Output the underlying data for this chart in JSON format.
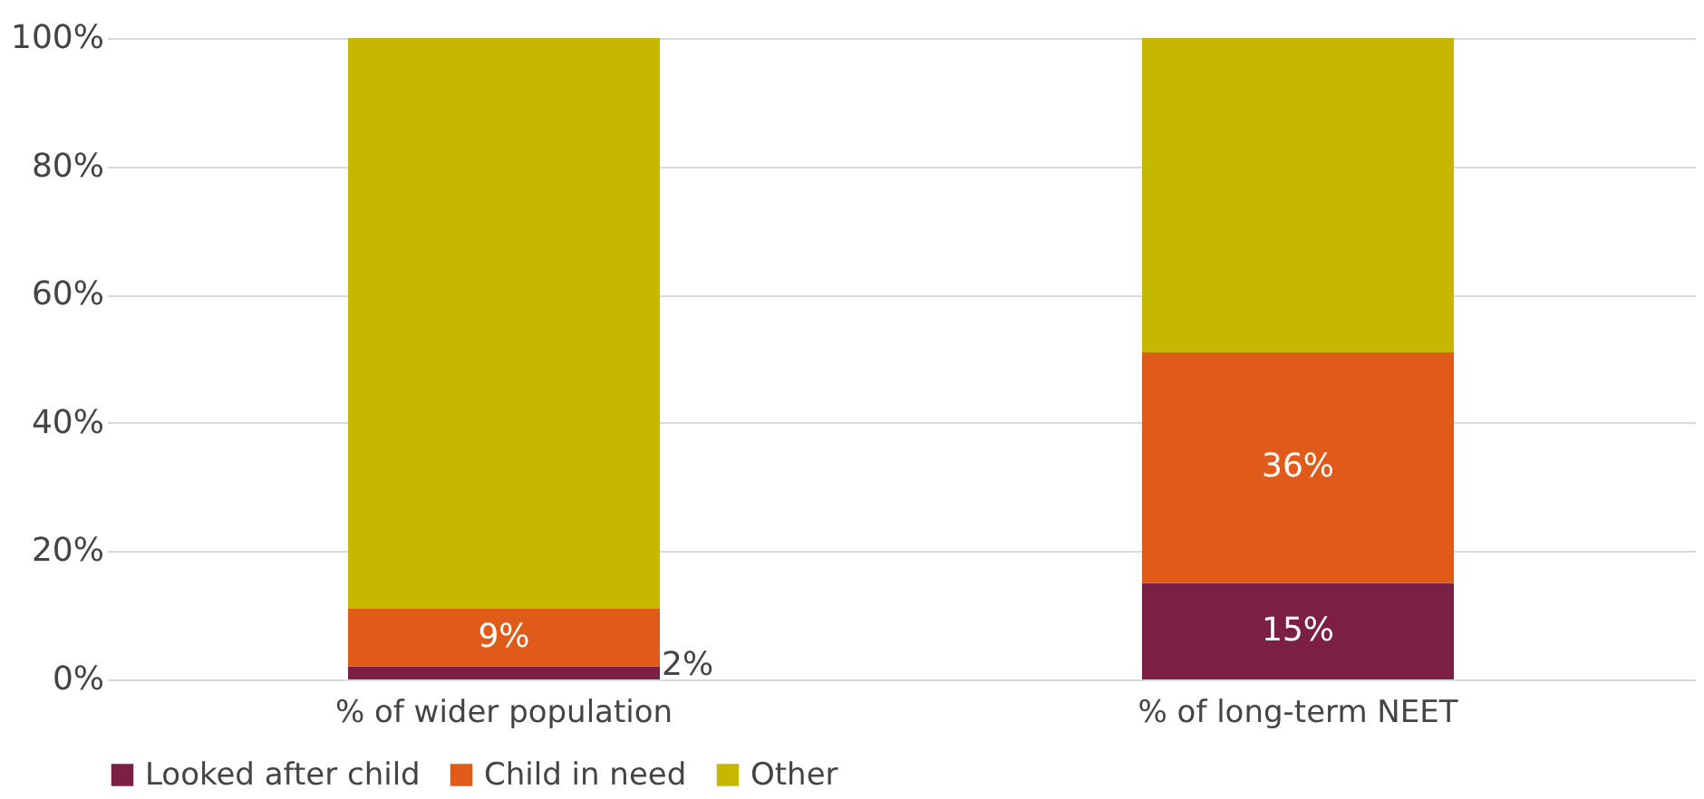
{
  "chart_data": {
    "type": "bar",
    "stacked": true,
    "categories": [
      "% of wider population",
      "% of long-term NEET"
    ],
    "series": [
      {
        "name": "Looked after child",
        "color": "#7b1f45",
        "values": [
          2,
          15
        ],
        "value_labels": [
          "2%",
          "15%"
        ]
      },
      {
        "name": "Child in need",
        "color": "#e05a1a",
        "values": [
          9,
          36
        ],
        "value_labels": [
          "9%",
          "36%"
        ]
      },
      {
        "name": "Other",
        "color": "#c6b700",
        "values": [
          89,
          49
        ]
      }
    ],
    "ylim": [
      0,
      100
    ],
    "yticks": [
      {
        "value": 0,
        "label": "0%"
      },
      {
        "value": 20,
        "label": "20%"
      },
      {
        "value": 40,
        "label": "40%"
      },
      {
        "value": 60,
        "label": "60%"
      },
      {
        "value": 80,
        "label": "80%"
      },
      {
        "value": 100,
        "label": "100%"
      }
    ],
    "grid": "y",
    "legend": "bottom"
  }
}
